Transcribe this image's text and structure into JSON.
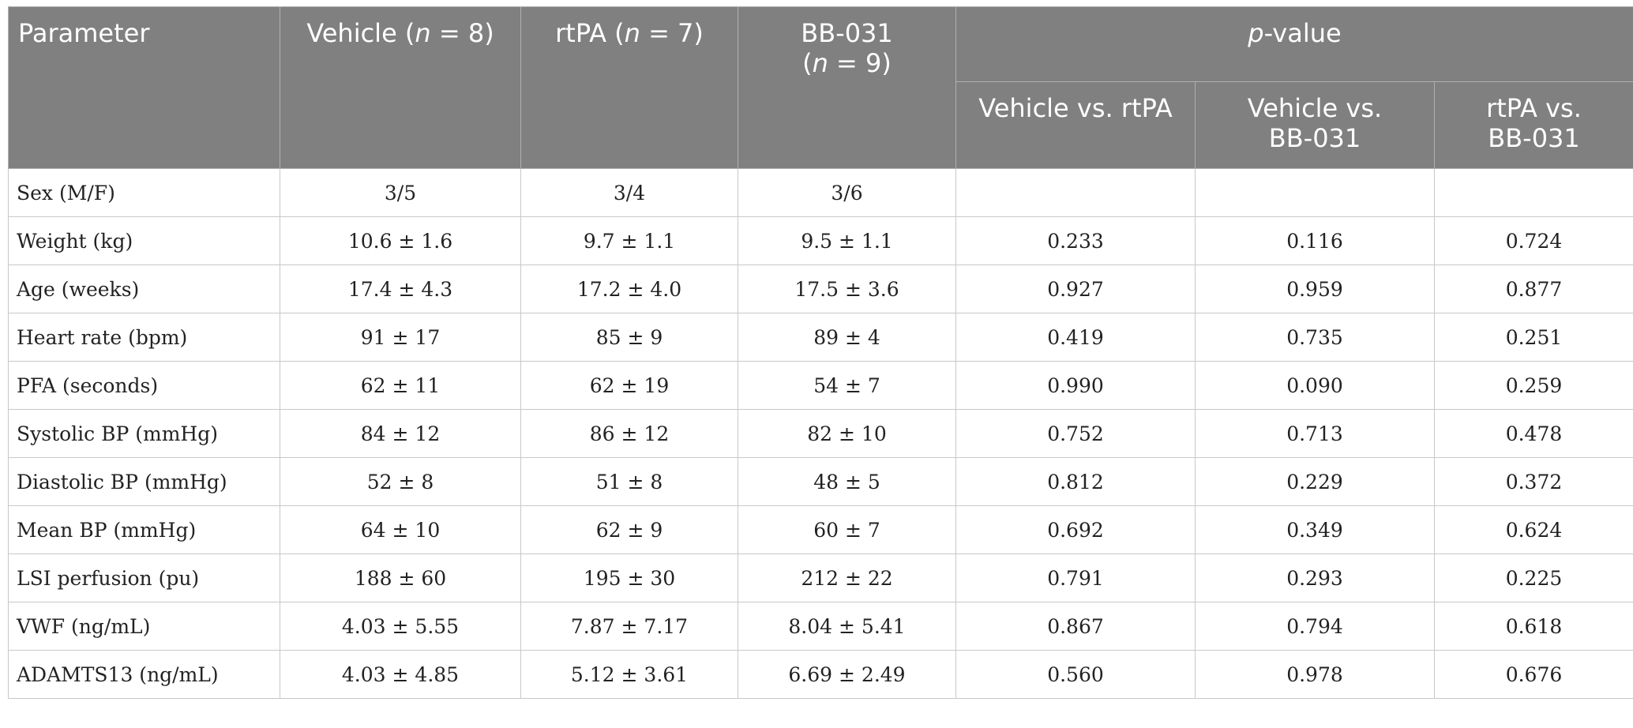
{
  "header": {
    "parameter": "Parameter",
    "vehicle_pre": "Vehicle (",
    "vehicle_n": "n",
    "vehicle_post": " = 8)",
    "rtpa_pre": "rtPA (",
    "rtpa_n": "n",
    "rtpa_post": " = 7)",
    "bb_line1": "BB-031",
    "bb_pre": "(",
    "bb_n": "n",
    "bb_post": " = 9)",
    "p_italic": "p",
    "p_rest": "-value",
    "sub_vehicle_rtpa": "Vehicle vs. rtPA",
    "sub_vehicle_bb_1": "Vehicle vs.",
    "sub_vehicle_bb_2": "BB-031",
    "sub_rtpa_bb_1": "rtPA vs.",
    "sub_rtpa_bb_2": "BB-031"
  },
  "rows": [
    {
      "parameter": "Sex (M/F)",
      "vehicle": "3/5",
      "rtpa": "3/4",
      "bb031": "3/6",
      "p_vehicle_rtpa": "",
      "p_vehicle_bb031": "",
      "p_rtpa_bb031": ""
    },
    {
      "parameter": "Weight (kg)",
      "vehicle": "10.6 ± 1.6",
      "rtpa": "9.7 ± 1.1",
      "bb031": "9.5 ± 1.1",
      "p_vehicle_rtpa": "0.233",
      "p_vehicle_bb031": "0.116",
      "p_rtpa_bb031": "0.724"
    },
    {
      "parameter": "Age (weeks)",
      "vehicle": "17.4 ± 4.3",
      "rtpa": "17.2 ± 4.0",
      "bb031": "17.5 ± 3.6",
      "p_vehicle_rtpa": "0.927",
      "p_vehicle_bb031": "0.959",
      "p_rtpa_bb031": "0.877"
    },
    {
      "parameter": "Heart rate (bpm)",
      "vehicle": "91 ± 17",
      "rtpa": "85 ± 9",
      "bb031": "89 ± 4",
      "p_vehicle_rtpa": "0.419",
      "p_vehicle_bb031": "0.735",
      "p_rtpa_bb031": "0.251"
    },
    {
      "parameter": "PFA (seconds)",
      "vehicle": "62 ± 11",
      "rtpa": "62 ± 19",
      "bb031": "54 ± 7",
      "p_vehicle_rtpa": "0.990",
      "p_vehicle_bb031": "0.090",
      "p_rtpa_bb031": "0.259"
    },
    {
      "parameter": "Systolic BP (mmHg)",
      "vehicle": "84 ± 12",
      "rtpa": "86 ± 12",
      "bb031": "82 ± 10",
      "p_vehicle_rtpa": "0.752",
      "p_vehicle_bb031": "0.713",
      "p_rtpa_bb031": "0.478"
    },
    {
      "parameter": "Diastolic BP (mmHg)",
      "vehicle": "52 ± 8",
      "rtpa": "51 ± 8",
      "bb031": "48 ± 5",
      "p_vehicle_rtpa": "0.812",
      "p_vehicle_bb031": "0.229",
      "p_rtpa_bb031": "0.372"
    },
    {
      "parameter": "Mean BP (mmHg)",
      "vehicle": "64 ± 10",
      "rtpa": "62 ± 9",
      "bb031": "60 ± 7",
      "p_vehicle_rtpa": "0.692",
      "p_vehicle_bb031": "0.349",
      "p_rtpa_bb031": "0.624"
    },
    {
      "parameter": "LSI perfusion (pu)",
      "vehicle": "188 ± 60",
      "rtpa": "195 ± 30",
      "bb031": "212 ± 22",
      "p_vehicle_rtpa": "0.791",
      "p_vehicle_bb031": "0.293",
      "p_rtpa_bb031": "0.225"
    },
    {
      "parameter": "VWF (ng/mL)",
      "vehicle": "4.03 ± 5.55",
      "rtpa": "7.87 ± 7.17",
      "bb031": "8.04 ± 5.41",
      "p_vehicle_rtpa": "0.867",
      "p_vehicle_bb031": "0.794",
      "p_rtpa_bb031": "0.618"
    },
    {
      "parameter": "ADAMTS13 (ng/mL)",
      "vehicle": "4.03 ± 4.85",
      "rtpa": "5.12 ± 3.61",
      "bb031": "6.69 ± 2.49",
      "p_vehicle_rtpa": "0.560",
      "p_vehicle_bb031": "0.978",
      "p_rtpa_bb031": "0.676"
    }
  ]
}
